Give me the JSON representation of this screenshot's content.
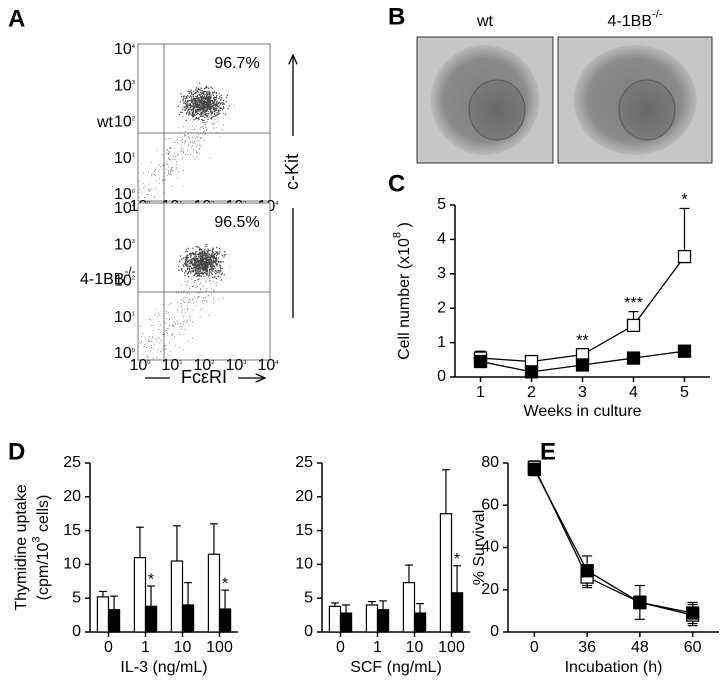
{
  "panel_a": {
    "letter": "A",
    "rows": [
      {
        "label": {
          "text": "wt"
        },
        "percent": "96.7%"
      },
      {
        "label": {
          "text": "4-1BB",
          "sup": "-/-"
        },
        "percent": "96.5%"
      }
    ],
    "ticks": [
      {
        "text": "10",
        "sup": "0"
      },
      {
        "text": "10",
        "sup": "1"
      },
      {
        "text": "10",
        "sup": "2"
      },
      {
        "text": "10",
        "sup": "3"
      },
      {
        "text": "10",
        "sup": "4"
      }
    ],
    "x_label": "FcεRI",
    "y_label": "c-Kit"
  },
  "panel_b": {
    "letter": "B",
    "images": [
      {
        "label": {
          "text": "wt"
        }
      },
      {
        "label": {
          "text": "4-1BB",
          "sup": "-/-"
        }
      }
    ]
  },
  "chart_data": [
    {
      "type": "line",
      "letter": "C",
      "categories": [
        "1",
        "2",
        "3",
        "4",
        "5"
      ],
      "series": [
        {
          "color": "#ffffff",
          "values": [
            0.55,
            0.45,
            0.65,
            1.5,
            3.5
          ],
          "errors": [
            0.2,
            0.1,
            0.15,
            0.4,
            1.4
          ],
          "annotations": [
            null,
            null,
            "**",
            "***",
            "*"
          ]
        },
        {
          "color": "#000000",
          "values": [
            0.45,
            0.15,
            0.35,
            0.55,
            0.75
          ],
          "errors": [
            0.05,
            0.05,
            0.05,
            0.05,
            0.1
          ]
        }
      ],
      "error_direction": "up",
      "ylim": [
        0,
        5
      ],
      "yticks": [
        0,
        1,
        2,
        3,
        4,
        5
      ],
      "x_label": {
        "text": "Weeks in culture"
      },
      "y_label": [
        {
          "text": "Cell number (x10",
          "sup": "8",
          "after": " )"
        }
      ]
    },
    {
      "type": "bar",
      "letter": "D",
      "categories": [
        "0",
        "1",
        "10",
        "100"
      ],
      "series": [
        {
          "color": "#ffffff",
          "values": [
            5.2,
            11,
            10.5,
            11.5
          ],
          "errors": [
            0.8,
            4.5,
            5.2,
            4.5
          ]
        },
        {
          "color": "#000000",
          "values": [
            3.3,
            3.8,
            4,
            3.4
          ],
          "errors": [
            2,
            3,
            3.3,
            2.8
          ],
          "annotations": [
            null,
            "*",
            null,
            "*"
          ]
        }
      ],
      "error_direction": "up",
      "ylim": [
        0,
        25
      ],
      "yticks": [
        0,
        5,
        10,
        15,
        20,
        25
      ],
      "x_label": {
        "text": "IL-3 (ng/mL)"
      },
      "y_label": [
        {
          "text": "Thymidine uptake"
        },
        {
          "text": "(cpm/10",
          "sup": "3",
          "after": " cells)"
        }
      ]
    },
    {
      "type": "bar",
      "categories": [
        "0",
        "1",
        "10",
        "100"
      ],
      "series": [
        {
          "color": "#ffffff",
          "values": [
            3.8,
            4,
            7.3,
            17.5
          ],
          "errors": [
            0.5,
            0.5,
            2.6,
            6.5
          ]
        },
        {
          "color": "#000000",
          "values": [
            2.8,
            3.3,
            2.8,
            5.8
          ],
          "errors": [
            1.2,
            1.3,
            1.4,
            4
          ],
          "annotations": [
            null,
            null,
            null,
            "*"
          ]
        }
      ],
      "error_direction": "up",
      "ylim": [
        0,
        25
      ],
      "yticks": [
        0,
        5,
        10,
        15,
        20,
        25
      ],
      "x_label": {
        "text": "SCF (ng/mL)"
      }
    },
    {
      "type": "line",
      "letter": "E",
      "categories": [
        "0",
        "36",
        "48",
        "60"
      ],
      "series": [
        {
          "color": "#ffffff",
          "values": [
            78,
            26,
            14,
            8
          ],
          "errors": [
            3,
            5,
            8,
            5
          ]
        },
        {
          "color": "#000000",
          "values": [
            77,
            29,
            14,
            9
          ],
          "errors": [
            3,
            7,
            3,
            5
          ]
        }
      ],
      "error_direction": "both",
      "ylim": [
        0,
        80
      ],
      "yticks": [
        0,
        20,
        40,
        60,
        80
      ],
      "x_label": {
        "text": "Incubation (h)"
      },
      "y_label": [
        {
          "text": "% Survival"
        }
      ]
    }
  ]
}
